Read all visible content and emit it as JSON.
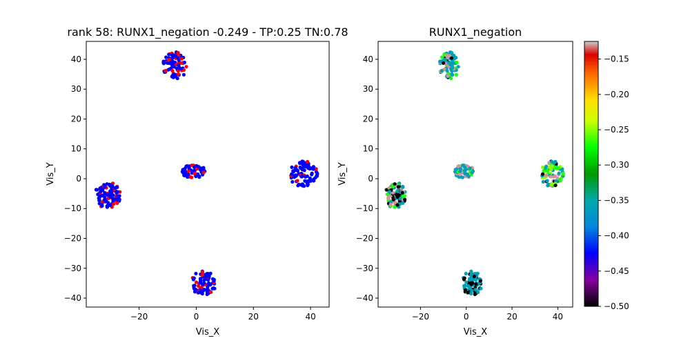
{
  "chart_data": [
    {
      "type": "scatter",
      "title": "rank 58: RUNX1_negation -0.249 - TP:0.25 TN:0.78",
      "xlabel": "Vis_X",
      "ylabel": "Vis_Y",
      "xlim": [
        -38.5,
        46.5
      ],
      "ylim": [
        -43,
        46
      ],
      "xticks": [
        -20,
        0,
        20,
        40
      ],
      "yticks": [
        -40,
        -30,
        -20,
        -10,
        0,
        10,
        20,
        30,
        40
      ],
      "colors": {
        "positive": "#ff0000",
        "negative": "#0000ff"
      },
      "clusters": [
        {
          "cx": -7.5,
          "cy": 38,
          "rx": 4.5,
          "ry": 4.5,
          "n": 90,
          "positive_fraction": 0.25
        },
        {
          "cx": -31,
          "cy": -5.5,
          "rx": 4.5,
          "ry": 4.5,
          "n": 100,
          "positive_fraction": 0.25
        },
        {
          "cx": -1,
          "cy": 2.5,
          "rx": 4,
          "ry": 2.5,
          "n": 55,
          "positive_fraction": 0.2
        },
        {
          "cx": 37.5,
          "cy": 1.5,
          "rx": 5,
          "ry": 4.5,
          "n": 90,
          "positive_fraction": 0.15
        },
        {
          "cx": 2.5,
          "cy": -35,
          "rx": 4.5,
          "ry": 4,
          "n": 80,
          "positive_fraction": 0.1
        }
      ]
    },
    {
      "type": "scatter",
      "title": "RUNX1_negation",
      "xlabel": "Vis_X",
      "ylabel": "Vis_Y",
      "xlim": [
        -38.5,
        46.5
      ],
      "ylim": [
        -43,
        46
      ],
      "xticks": [
        -20,
        0,
        20,
        40
      ],
      "yticks": [
        -40,
        -30,
        -20,
        -10,
        0,
        10,
        20,
        30,
        40
      ],
      "colormap": "nipy_spectral",
      "colorbar": {
        "min": -0.5,
        "max": -0.125,
        "ticks": [
          -0.15,
          -0.2,
          -0.25,
          -0.3,
          -0.35,
          -0.4,
          -0.45,
          -0.5
        ]
      },
      "clusters": [
        {
          "cx": -7.5,
          "cy": 38,
          "rx": 4.5,
          "ry": 4.5,
          "n": 90,
          "value_palette": [
            -0.36,
            -0.36,
            -0.36,
            -0.36,
            -0.5,
            -0.13,
            -0.27
          ]
        },
        {
          "cx": -31,
          "cy": -5.5,
          "rx": 4.5,
          "ry": 4.5,
          "n": 100,
          "value_palette": [
            -0.36,
            -0.36,
            -0.5,
            -0.5,
            -0.13,
            -0.13,
            -0.27
          ]
        },
        {
          "cx": -1,
          "cy": 2.5,
          "rx": 4,
          "ry": 2.5,
          "n": 55,
          "value_palette": [
            -0.36,
            -0.36,
            -0.36,
            -0.27,
            -0.13
          ]
        },
        {
          "cx": 37.5,
          "cy": 1.5,
          "rx": 5,
          "ry": 4.5,
          "n": 90,
          "value_palette": [
            -0.36,
            -0.36,
            -0.27,
            -0.25,
            -0.5,
            -0.13
          ]
        },
        {
          "cx": 2.5,
          "cy": -35,
          "rx": 4.5,
          "ry": 4,
          "n": 80,
          "value_palette": [
            -0.36,
            -0.36,
            -0.36,
            -0.5,
            -0.5
          ]
        }
      ]
    }
  ]
}
